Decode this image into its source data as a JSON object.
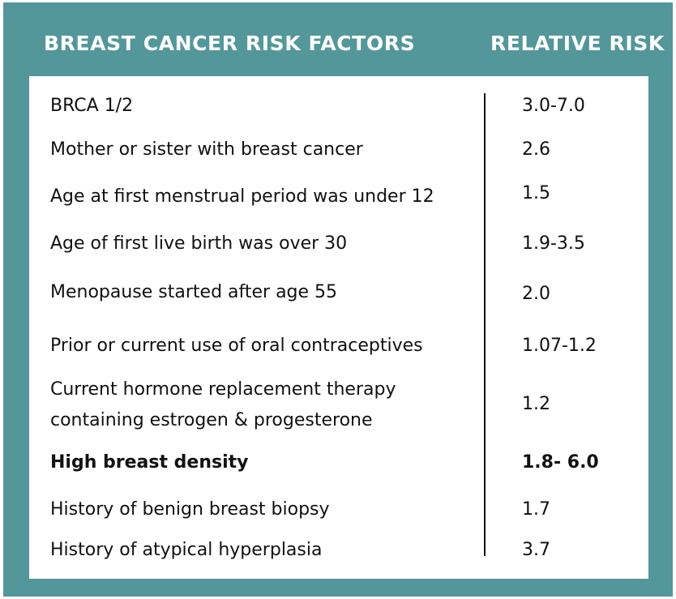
{
  "header": {
    "left_title": "BREAST CANCER RISK FACTORS",
    "right_title": "RELATIVE RISK"
  },
  "rows": [
    {
      "factor": "BRCA 1/2",
      "risk": "3.0-7.0"
    },
    {
      "factor": "Mother or sister with breast cancer",
      "risk": "2.6"
    },
    {
      "factor": "Age at first menstrual period was under 12",
      "risk": "1.5"
    },
    {
      "factor": "Age of first live birth was over 30",
      "risk": "1.9-3.5"
    },
    {
      "factor": "Menopause started after age 55",
      "risk": "2.0"
    },
    {
      "factor": "Prior or current use of oral contraceptives",
      "risk": "1.07-1.2"
    },
    {
      "factor_line1": "Current hormone replacement therapy",
      "factor_line2": "containing estrogen & progesterone",
      "risk": "1.2"
    },
    {
      "factor": "High breast density",
      "risk": "1.8- 6.0"
    },
    {
      "factor": "History of benign breast biopsy",
      "risk": "1.7"
    },
    {
      "factor": "History of atypical hyperplasia",
      "risk": "3.7"
    }
  ],
  "colors": {
    "frame": "#53979b",
    "panel": "#ffffff",
    "text": "#111111"
  }
}
